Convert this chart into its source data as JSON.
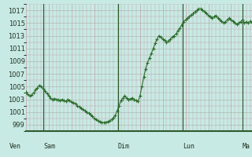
{
  "background_color": "#c8eae4",
  "plot_bg_color": "#c8eae4",
  "line_color": "#2d6e2d",
  "marker_color": "#2d6e2d",
  "ylim": [
    998,
    1018
  ],
  "yticks": [
    999,
    1001,
    1003,
    1005,
    1007,
    1009,
    1011,
    1013,
    1015,
    1017
  ],
  "day_labels": [
    "Ven",
    "Sam",
    "Dim",
    "Lun",
    "Ma"
  ],
  "day_x_positions": [
    12,
    55,
    150,
    232,
    308
  ],
  "vline_x_positions": [
    12,
    55,
    150,
    232,
    308
  ],
  "x": [
    0,
    1,
    2,
    3,
    4,
    5,
    6,
    7,
    8,
    9,
    10,
    11,
    12,
    13,
    14,
    15,
    16,
    17,
    18,
    19,
    20,
    21,
    22,
    23,
    24,
    25,
    26,
    27,
    28,
    29,
    30,
    31,
    32,
    33,
    34,
    35,
    36,
    37,
    38,
    39,
    40,
    41,
    42,
    43,
    44,
    45,
    46,
    47,
    48,
    49,
    50,
    51,
    52,
    53,
    54,
    55,
    56,
    57,
    58,
    59,
    60,
    61,
    62,
    63,
    64,
    65,
    66,
    67,
    68,
    69,
    70,
    71,
    72,
    73,
    74,
    75,
    76,
    77,
    78,
    79,
    80,
    81,
    82,
    83,
    84,
    85,
    86,
    87,
    88,
    89,
    90,
    91,
    92,
    93,
    94,
    95,
    96,
    97,
    98,
    99,
    100,
    101,
    102,
    103,
    104,
    105,
    106,
    107,
    108,
    109,
    110,
    111,
    112,
    113,
    114,
    115,
    116,
    117,
    118,
    119
  ],
  "y": [
    1004.2,
    1003.8,
    1003.5,
    1003.7,
    1004.0,
    1004.5,
    1004.8,
    1005.2,
    1005.0,
    1004.7,
    1004.3,
    1003.9,
    1003.6,
    1003.2,
    1003.0,
    1003.1,
    1003.0,
    1002.9,
    1002.8,
    1003.0,
    1002.8,
    1002.7,
    1003.0,
    1002.8,
    1002.6,
    1002.5,
    1002.3,
    1002.0,
    1001.8,
    1001.6,
    1001.4,
    1001.2,
    1001.0,
    1000.8,
    1000.6,
    1000.3,
    1000.0,
    999.8,
    999.6,
    999.5,
    999.4,
    999.3,
    999.4,
    999.5,
    999.6,
    999.8,
    1000.1,
    1000.5,
    1001.2,
    1002.0,
    1002.8,
    1003.2,
    1003.5,
    1003.2,
    1003.0,
    1003.1,
    1003.2,
    1003.0,
    1002.8,
    1002.7,
    1003.5,
    1005.0,
    1006.5,
    1007.8,
    1008.8,
    1009.5,
    1010.2,
    1011.0,
    1011.8,
    1012.5,
    1013.0,
    1012.8,
    1012.5,
    1012.3,
    1012.0,
    1012.2,
    1012.5,
    1012.8,
    1013.0,
    1013.3,
    1013.8,
    1014.2,
    1014.7,
    1015.2,
    1015.5,
    1015.8,
    1016.0,
    1016.3,
    1016.5,
    1016.8,
    1017.0,
    1017.2,
    1017.2,
    1017.0,
    1016.8,
    1016.5,
    1016.2,
    1016.0,
    1015.8,
    1016.0,
    1016.2,
    1015.8,
    1015.5,
    1015.3,
    1015.0,
    1015.2,
    1015.5,
    1015.8,
    1015.5,
    1015.3,
    1015.0,
    1014.8,
    1015.0,
    1015.2,
    1015.5,
    1015.0,
    1015.2,
    1015.0,
    1015.3,
    1015.0
  ]
}
